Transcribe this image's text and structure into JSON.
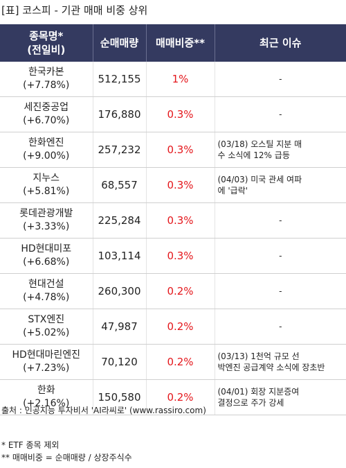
{
  "title": "[표] 코스피 - 기관 매매 비중 상위",
  "headers": {
    "name_line1": "종목명*",
    "name_line2": "(전일비)",
    "volume": "순매매량",
    "ratio": "매매비중**",
    "issue": "최근 이슈"
  },
  "rows": [
    {
      "name": "한국카본",
      "change": "(+7.78%)",
      "volume": "512,155",
      "ratio": "1%",
      "issue_line1": "-",
      "issue_line2": ""
    },
    {
      "name": "세진중공업",
      "change": "(+6.70%)",
      "volume": "176,880",
      "ratio": "0.3%",
      "issue_line1": "-",
      "issue_line2": ""
    },
    {
      "name": "한화엔진",
      "change": "(+9.00%)",
      "volume": "257,232",
      "ratio": "0.3%",
      "issue_line1": "(03/18) 오스틸 지분 매",
      "issue_line2": "수 소식에 12% 급등"
    },
    {
      "name": "지누스",
      "change": "(+5.81%)",
      "volume": "68,557",
      "ratio": "0.3%",
      "issue_line1": "(04/03) 미국 관세 여파",
      "issue_line2": "에 '급락'"
    },
    {
      "name": "롯데관광개발",
      "change": "(+3.33%)",
      "volume": "225,284",
      "ratio": "0.3%",
      "issue_line1": "-",
      "issue_line2": ""
    },
    {
      "name": "HD현대미포",
      "change": "(+6.68%)",
      "volume": "103,114",
      "ratio": "0.3%",
      "issue_line1": "-",
      "issue_line2": ""
    },
    {
      "name": "현대건설",
      "change": "(+4.78%)",
      "volume": "260,300",
      "ratio": "0.2%",
      "issue_line1": "-",
      "issue_line2": ""
    },
    {
      "name": "STX엔진",
      "change": "(+5.02%)",
      "volume": "47,987",
      "ratio": "0.2%",
      "issue_line1": "-",
      "issue_line2": ""
    },
    {
      "name": "HD현대마린엔진",
      "change": "(+7.23%)",
      "volume": "70,120",
      "ratio": "0.2%",
      "issue_line1": "(03/13) 1천억 규모 선",
      "issue_line2": "박엔진 공급계약 소식에 장초반"
    },
    {
      "name": "한화",
      "change": "(+2.16%)",
      "volume": "150,580",
      "ratio": "0.2%",
      "issue_line1": "(04/01) 회장 지분증여",
      "issue_line2": "결정으로 주가 강세"
    }
  ],
  "footer": {
    "source": "출처 : 인공지능 투자비서 'AI라씨로' (www.rassiro.com)",
    "note1": "* ETF 종목 제외",
    "note2": "** 매매비중 = 순매매량 / 상장주식수"
  }
}
